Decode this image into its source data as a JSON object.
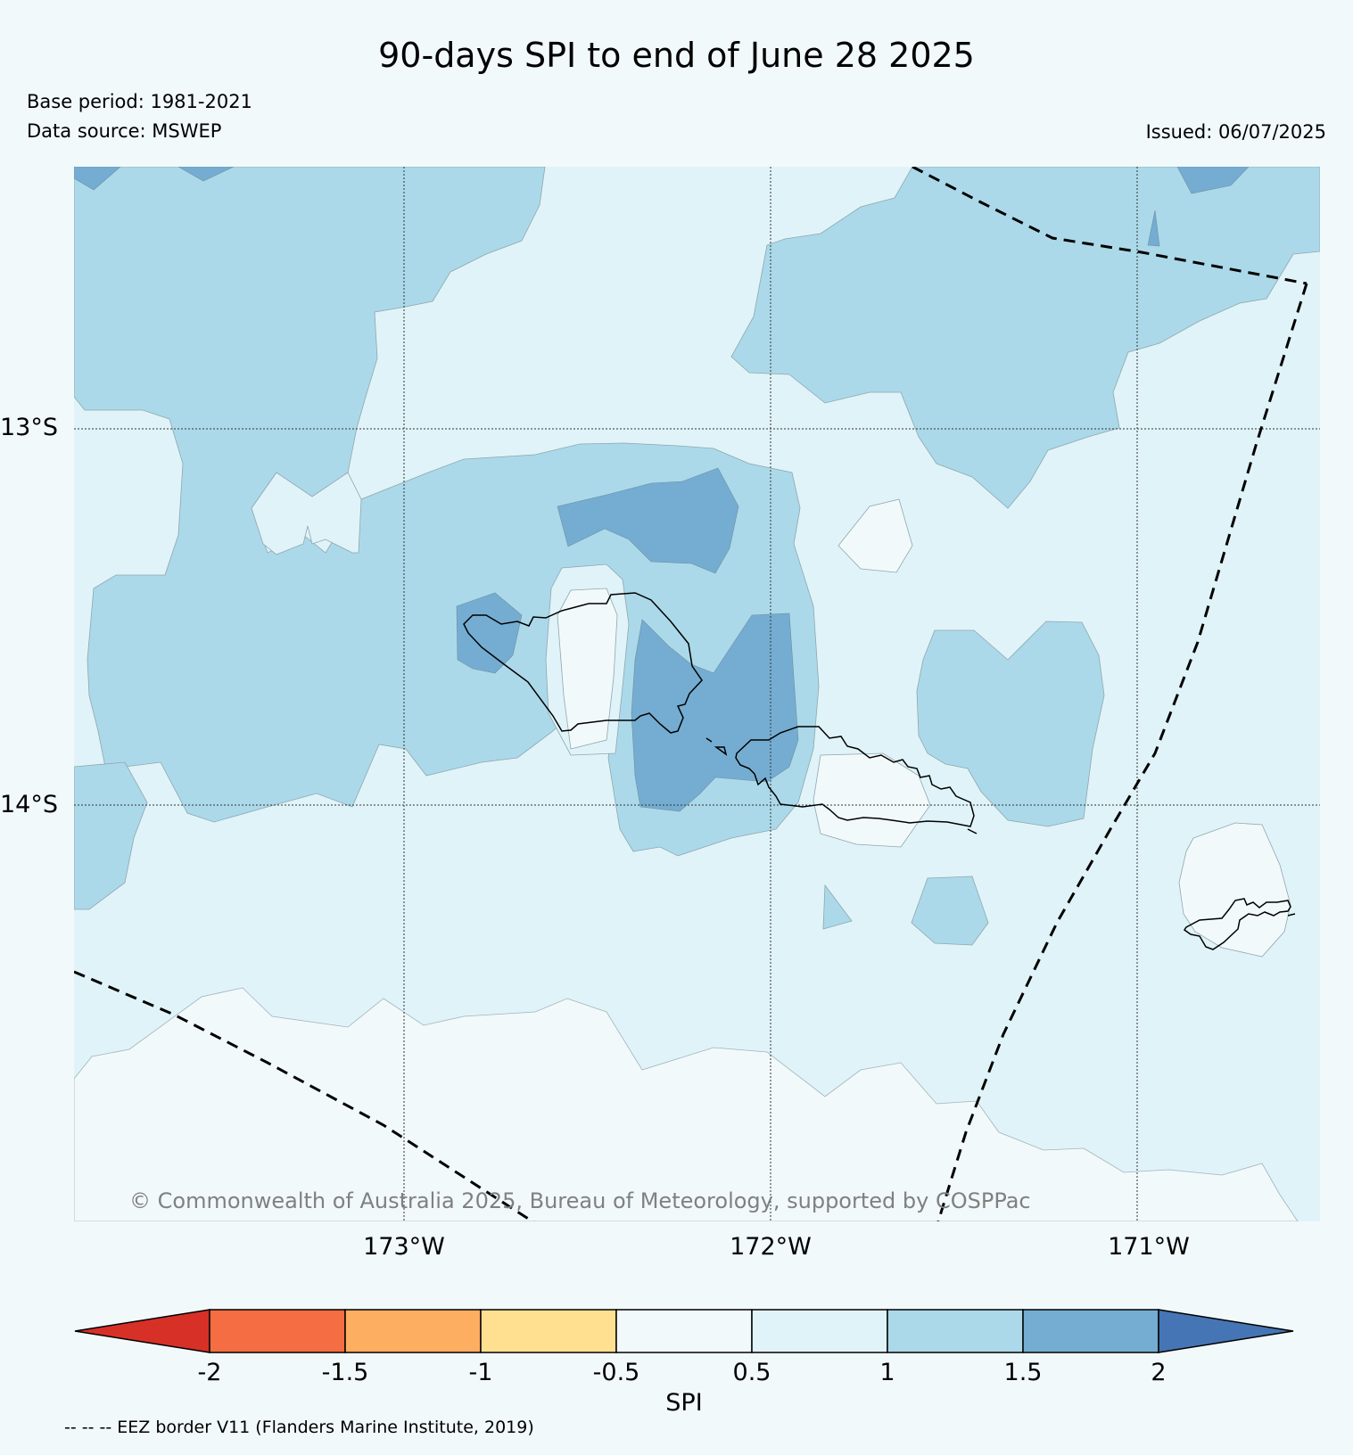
{
  "title": "90-days SPI to end of June 28 2025",
  "meta": {
    "base_period": "Base period: 1981-2021",
    "data_source": "Data source: MSWEP",
    "issued": "Issued: 06/07/2025"
  },
  "map": {
    "lat_labels": [
      "13°S",
      "14°S"
    ],
    "lon_labels": [
      "173°W",
      "172°W",
      "171°W"
    ],
    "copyright": "© Commonwealth of Australia 2025, Bureau of Meteorology, supported by COSPPac",
    "colors": {
      "class_0_05": "#f2f9fb",
      "class_05_1": "#e0f3f8",
      "class_1_15": "#abd9e9",
      "class_15_2": "#74add1",
      "gridline": "#000000"
    }
  },
  "colorbar": {
    "label": "SPI",
    "ticks": [
      "-2",
      "-1.5",
      "-1",
      "-0.5",
      "0.5",
      "1",
      "1.5",
      "2"
    ],
    "colors": [
      "#d73027",
      "#f46d43",
      "#fdae61",
      "#fee090",
      "#f2f9fb",
      "#e0f3f8",
      "#abd9e9",
      "#74add1",
      "#4575b4"
    ]
  },
  "footnote": "-- -- -- EEZ border V11 (Flanders Marine Institute, 2019)"
}
